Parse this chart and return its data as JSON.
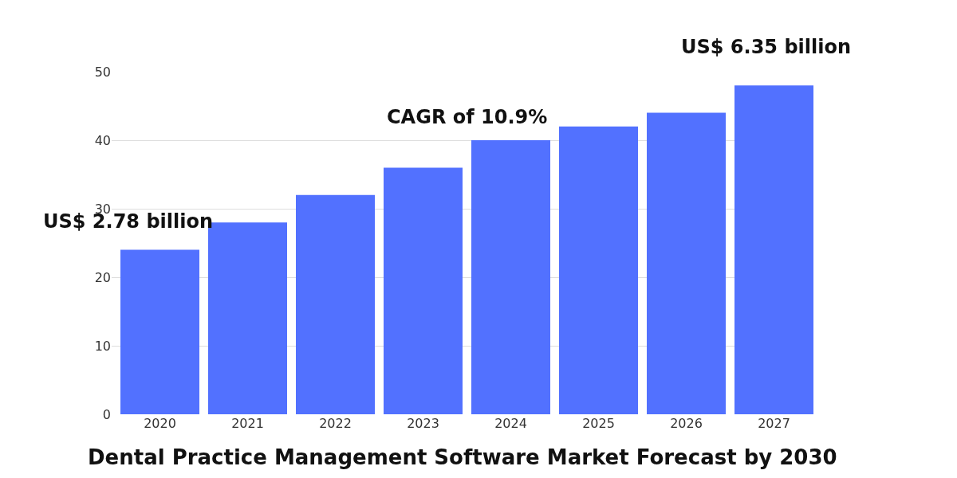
{
  "chart_data": {
    "type": "bar",
    "title": "Dental Practice Management Software Market Forecast by 2030",
    "categories": [
      "2020",
      "2021",
      "2022",
      "2023",
      "2024",
      "2025",
      "2026",
      "2027"
    ],
    "values": [
      24,
      28,
      32,
      36,
      40,
      42,
      44,
      48
    ],
    "color": "#5271ff",
    "ylim": [
      0,
      50
    ],
    "yticks": [
      0,
      10,
      20,
      30,
      40,
      50
    ],
    "grid": "y",
    "annotations": [
      {
        "text": "US$ 2.78 billion",
        "x": "2020",
        "y": 24
      },
      "CAGR of 10.9%",
      {
        "text": "US$ 6.35 billion",
        "x": "2027",
        "y": 48
      }
    ]
  }
}
